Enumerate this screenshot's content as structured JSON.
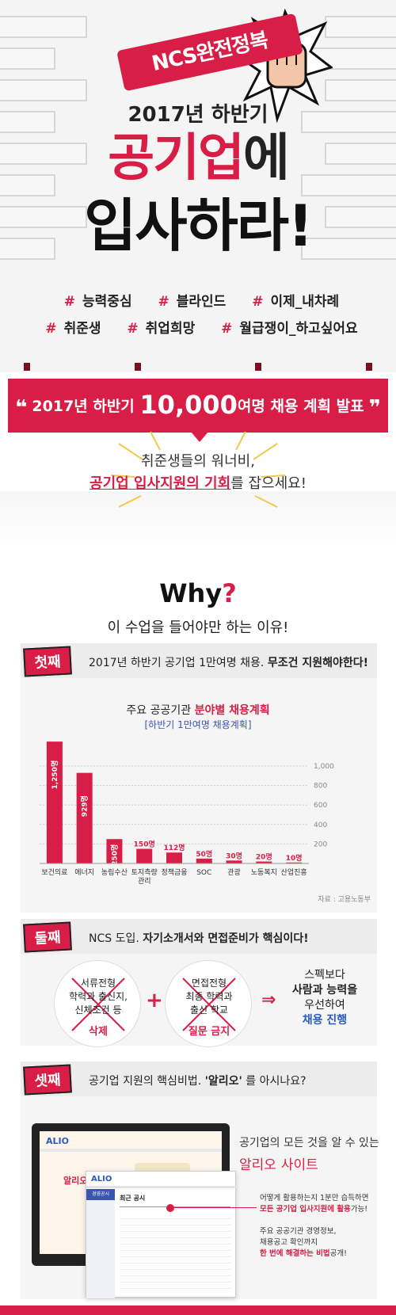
{
  "hero": {
    "flag": "NCS완전정복",
    "subtitle": "2017년 하반기",
    "title_red": "공기업",
    "title_black": "에",
    "title_line2": "입사하라!"
  },
  "hashtags": {
    "row1": [
      "#능력중심",
      "#블라인드",
      "#이제_내차례"
    ],
    "row2": [
      "#취준생",
      "#취업희망",
      "#월급쟁이_하고싶어요"
    ]
  },
  "band": {
    "pre": "2017년 하반기",
    "big": "10,000",
    "unit": "여명",
    "mid": "채용",
    "post": "계획 발표"
  },
  "invite": {
    "line1": "취준생들의 워너비,",
    "line2_hl": "공기업 입사지원의 기회",
    "line2_rest": "를 잡으세요!"
  },
  "why": {
    "title": "Why",
    "q": "?",
    "subtitle": "이 수업을 들어야만 하는 이유!"
  },
  "section1": {
    "badge": "첫째",
    "text": "2017년 하반기 공기업 1만여명 채용.",
    "bold": "무조건 지원해야한다!"
  },
  "chart_data": {
    "type": "bar",
    "title_pre": "주요 공공기관",
    "title_bold": "분야별 채용계획",
    "subtitle": "[하반기 1만여명 채용계획]",
    "categories": [
      "보건의료",
      "에너지",
      "농림수산",
      "토지측량 관리",
      "정책금융",
      "SOC",
      "관광",
      "노동복지",
      "산업진흥"
    ],
    "values": [
      1250,
      929,
      250,
      150,
      112,
      50,
      30,
      20,
      10
    ],
    "value_labels": [
      "1,250명",
      "929명",
      "250명",
      "150명",
      "112명",
      "50명",
      "30명",
      "20명",
      "10명"
    ],
    "yticks": [
      "1,000",
      "800",
      "600",
      "400",
      "200"
    ],
    "ytick_values": [
      1000,
      800,
      600,
      400,
      200
    ],
    "ylim": [
      0,
      1300
    ],
    "bar_color": "#d81e46",
    "source": "자료 : 고용노동부"
  },
  "section2": {
    "badge": "둘째",
    "text": "NCS 도입.",
    "bold": "자기소개서와 면접준비가 핵심이다!",
    "circle1_lines": [
      "서류전형",
      "학력과 출신지,",
      "신체조건 등"
    ],
    "circle1_red": "삭제",
    "circle2_lines": [
      "면접전형",
      "최종 학력과",
      "출신 학교"
    ],
    "circle2_red": "질문 금지",
    "plus": "+",
    "arrow": "⇒",
    "result": [
      "스펙보다",
      "사람과 능력을",
      "우선하여",
      "채용 진행"
    ]
  },
  "section3": {
    "badge": "셋째",
    "text": "공기업 지원의 핵심비법.",
    "bold": "'알리오'",
    "text2": "를 아시나요?",
    "right1": "공기업의 모든 것을 알 수 있는",
    "right2_red": "알리오",
    "right2_rest": "사이트",
    "note1": "어떻게 활용하는지 1분만 습득하면",
    "note2_red": "모든 공기업 입사지원에 활용",
    "note2_rest": "가능!",
    "note3": "주요 공공기관 경영정보,",
    "note4": "채용공고 확인까지",
    "note5_red": "한 번에 해결하는 비법",
    "note5_rest": "공개!",
    "screen_logo": "ALIO",
    "screen_banner": "알리오 시스템",
    "screen_front_title": "최근 공시",
    "screen_side": "경영공시"
  }
}
